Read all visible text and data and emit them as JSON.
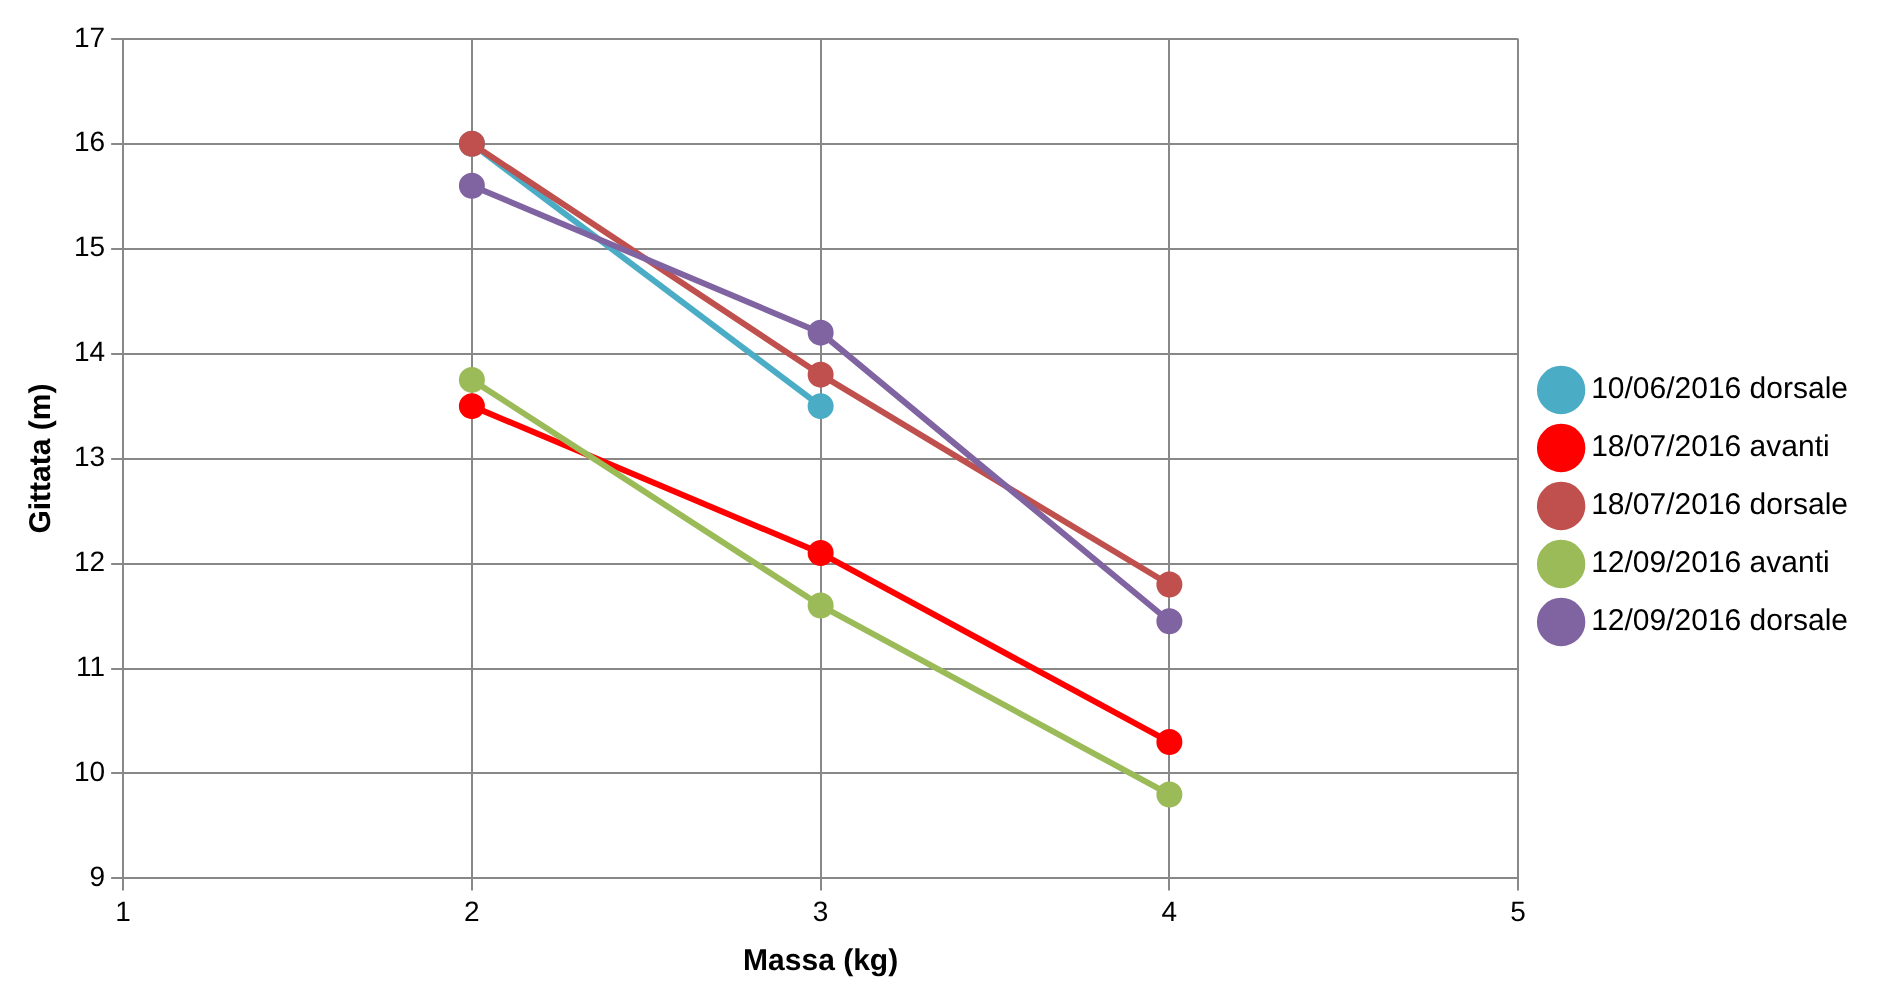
{
  "chart_data": {
    "type": "line",
    "xlabel": "Massa (kg)",
    "ylabel": "Gittata (m)",
    "x": [
      2,
      3,
      4
    ],
    "series": [
      {
        "name": "10/06/2016 dorsale",
        "color": "#4bacc6",
        "x": [
          2,
          3
        ],
        "values": [
          16,
          13.5
        ]
      },
      {
        "name": "18/07/2016 avanti",
        "color": "#ff0000",
        "values": [
          13.5,
          12.1,
          10.3
        ]
      },
      {
        "name": "18/07/2016 dorsale",
        "color": "#c0504d",
        "values": [
          16,
          13.8,
          11.8
        ]
      },
      {
        "name": "12/09/2016 avanti",
        "color": "#9bbb59",
        "values": [
          13.75,
          11.6,
          9.8
        ]
      },
      {
        "name": "12/09/2016 dorsale",
        "color": "#8064a2",
        "values": [
          15.6,
          14.2,
          11.45
        ]
      }
    ],
    "xlim": [
      1,
      5
    ],
    "xticks": [
      1,
      2,
      3,
      4,
      5
    ],
    "ylim": [
      9,
      17
    ],
    "yticks": [
      9,
      10,
      11,
      12,
      13,
      14,
      15,
      16,
      17
    ],
    "grid": true,
    "legend": "right",
    "marker": "circle",
    "line_style": "solid"
  }
}
